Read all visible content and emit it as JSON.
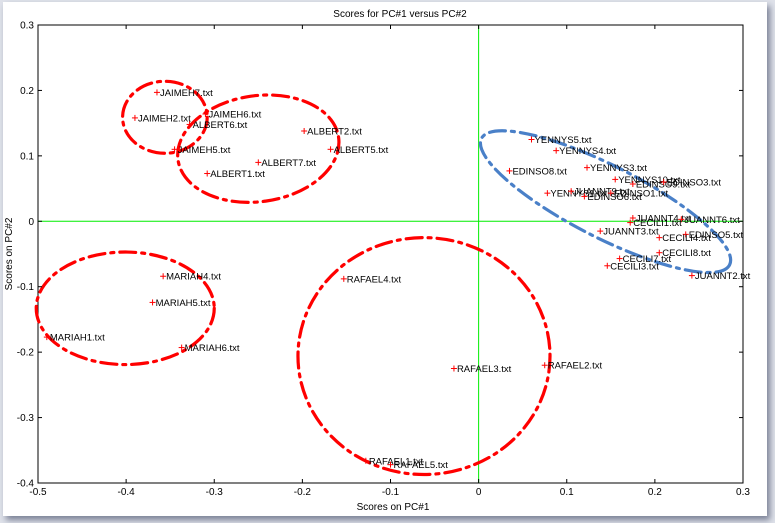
{
  "chart_data": {
    "type": "scatter",
    "title": "Scores for PC#1 versus PC#2",
    "xlabel": "Scores on PC#1",
    "ylabel": "Scores on PC#2",
    "xlim": [
      -0.5,
      0.3
    ],
    "ylim": [
      -0.4,
      0.3
    ],
    "xticks": [
      -0.5,
      -0.4,
      -0.3,
      -0.2,
      -0.1,
      0,
      0.1,
      0.2,
      0.3
    ],
    "xtick_labels": [
      "-0.5",
      "-0.4",
      "-0.3",
      "-0.2",
      "-0.1",
      "0",
      "0.1",
      "0.2",
      "0.3"
    ],
    "yticks": [
      0.3,
      0.2,
      0.1,
      0,
      -0.1,
      -0.2,
      -0.3,
      -0.4
    ],
    "ytick_labels": [
      "0.3",
      "0.2",
      "0.1",
      "0",
      "-0.1",
      "-0.2",
      "-0.3",
      "-0.4"
    ],
    "grid": false,
    "zero_lines": true,
    "marker_color": "#ff0000",
    "zero_line_color": "#00ee00",
    "points": [
      {
        "label": "JAIMEH7.txt",
        "x": -0.365,
        "y": 0.197
      },
      {
        "label": "JAIMEH2.txt",
        "x": -0.39,
        "y": 0.158
      },
      {
        "label": "JAIMEH6.txt",
        "x": -0.31,
        "y": 0.164
      },
      {
        "label": "ALBERT6.txt",
        "x": -0.328,
        "y": 0.148
      },
      {
        "label": "JAIMEH5.txt",
        "x": -0.345,
        "y": 0.11
      },
      {
        "label": "ALBERT2.txt",
        "x": -0.198,
        "y": 0.138
      },
      {
        "label": "ALBERT5.txt",
        "x": -0.168,
        "y": 0.11
      },
      {
        "label": "ALBERT7.txt",
        "x": -0.25,
        "y": 0.09
      },
      {
        "label": "ALBERT1.txt",
        "x": -0.308,
        "y": 0.073
      },
      {
        "label": "MARIAH4.txt",
        "x": -0.358,
        "y": -0.084
      },
      {
        "label": "MARIAH5.txt",
        "x": -0.37,
        "y": -0.124
      },
      {
        "label": "MARIAH1.txt",
        "x": -0.49,
        "y": -0.177
      },
      {
        "label": "MARIAH6.txt",
        "x": -0.337,
        "y": -0.193
      },
      {
        "label": "RAFAEL4.txt",
        "x": -0.153,
        "y": -0.088
      },
      {
        "label": "RAFAEL3.txt",
        "x": -0.028,
        "y": -0.225
      },
      {
        "label": "RAFAEL2.txt",
        "x": 0.075,
        "y": -0.22
      },
      {
        "label": "RAFAEL1.txt",
        "x": -0.128,
        "y": -0.366
      },
      {
        "label": "RAFAEL5.txt",
        "x": -0.1,
        "y": -0.372
      },
      {
        "label": "YENNYS5.txt",
        "x": 0.06,
        "y": 0.125
      },
      {
        "label": "YENNYS4.txt",
        "x": 0.088,
        "y": 0.108
      },
      {
        "label": "EDINSO8.txt",
        "x": 0.035,
        "y": 0.077
      },
      {
        "label": "YENNYS3.txt",
        "x": 0.123,
        "y": 0.082
      },
      {
        "label": "YENNYS10.txt",
        "x": 0.155,
        "y": 0.064
      },
      {
        "label": "EDINSO9.txt",
        "x": 0.175,
        "y": 0.057
      },
      {
        "label": "EDINSO3.txt",
        "x": 0.21,
        "y": 0.06
      },
      {
        "label": "YENNYS1.txt",
        "x": 0.078,
        "y": 0.043
      },
      {
        "label": "JUANNT9.txt",
        "x": 0.105,
        "y": 0.046
      },
      {
        "label": "EDINSO1.txt",
        "x": 0.15,
        "y": 0.043
      },
      {
        "label": "EDINSO6.txt",
        "x": 0.12,
        "y": 0.038
      },
      {
        "label": "JUANNT4.txt",
        "x": 0.175,
        "y": 0.005
      },
      {
        "label": "JUANNT6.txt",
        "x": 0.23,
        "y": 0.003
      },
      {
        "label": "CECILI1.txt",
        "x": 0.172,
        "y": -0.002
      },
      {
        "label": "JUANNT3.txt",
        "x": 0.138,
        "y": -0.015
      },
      {
        "label": "EDINSO5.txt",
        "x": 0.235,
        "y": -0.02
      },
      {
        "label": "CECILI4.txt",
        "x": 0.205,
        "y": -0.025
      },
      {
        "label": "CECILI8.txt",
        "x": 0.205,
        "y": -0.048
      },
      {
        "label": "CECILI7.txt",
        "x": 0.16,
        "y": -0.057
      },
      {
        "label": "CECILI3.txt",
        "x": 0.146,
        "y": -0.068
      },
      {
        "label": "JUANNT2.txt",
        "x": 0.242,
        "y": -0.083
      }
    ],
    "ellipses": [
      {
        "color": "#ff0000",
        "cx": -0.356,
        "cy": 0.159,
        "rx": 0.048,
        "ry": 0.055,
        "rotation_deg": 0
      },
      {
        "color": "#ff0000",
        "cx": -0.25,
        "cy": 0.111,
        "rx": 0.092,
        "ry": 0.081,
        "rotation_deg": -8
      },
      {
        "color": "#ff0000",
        "cx": -0.401,
        "cy": -0.133,
        "rx": 0.101,
        "ry": 0.086,
        "rotation_deg": 0
      },
      {
        "color": "#ff0000",
        "cx": -0.062,
        "cy": -0.206,
        "rx": 0.143,
        "ry": 0.181,
        "rotation_deg": 0
      },
      {
        "color": "#4a80c8",
        "cx": 0.144,
        "cy": 0.03,
        "rx": 0.158,
        "ry": 0.055,
        "rotation_deg": 27
      }
    ]
  }
}
